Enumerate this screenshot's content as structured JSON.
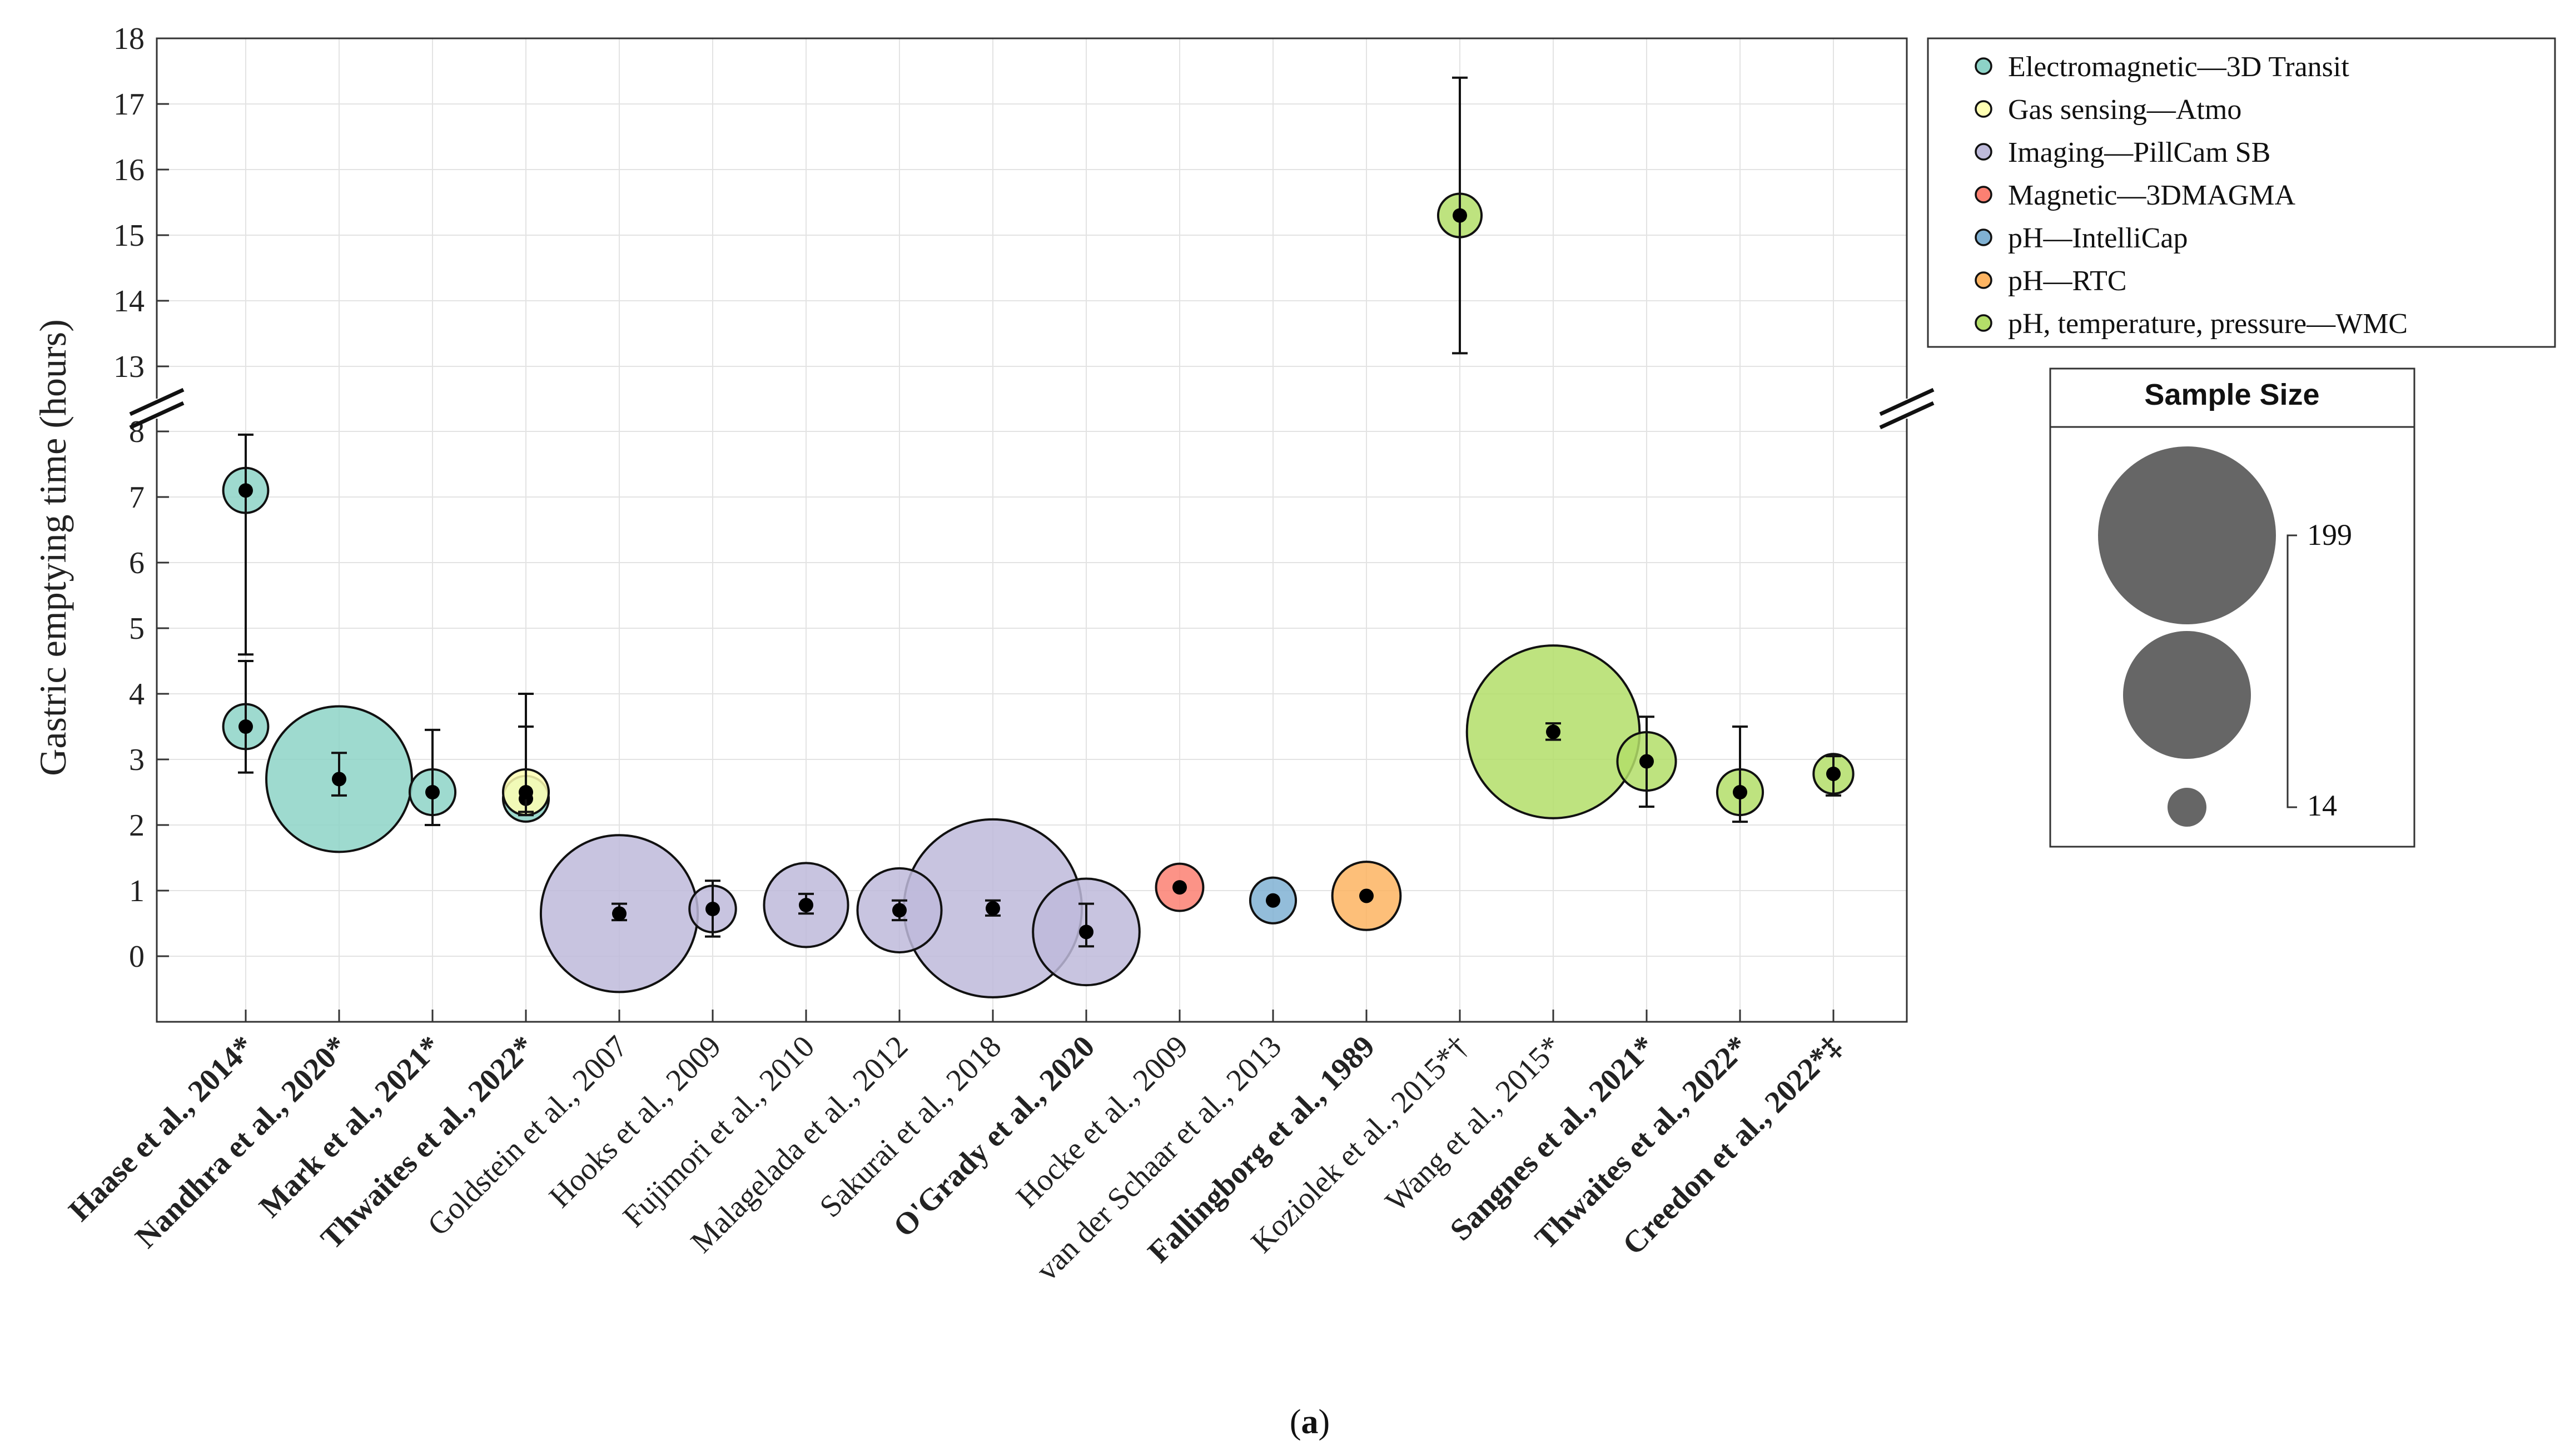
{
  "chart_data": {
    "type": "scatter",
    "title": "",
    "xlabel": "",
    "ylabel": "Gastric emptying time (hours)",
    "ylim_lower": [
      -1,
      8.5
    ],
    "ylim_upper": [
      12.5,
      18
    ],
    "y_axis_break": true,
    "y_ticks_lower": [
      "0",
      "1",
      "2",
      "3",
      "4",
      "5",
      "6",
      "7",
      "8"
    ],
    "y_ticks_upper": [
      "13",
      "14",
      "15",
      "16",
      "17",
      "18"
    ],
    "grid": true,
    "categories": [
      {
        "label": "Haase et al., 2014*",
        "bold": true
      },
      {
        "label": "Nandhra et al., 2020*",
        "bold": true
      },
      {
        "label": "Mark et al., 2021*",
        "bold": true
      },
      {
        "label": "Thwaites et al., 2022*",
        "bold": true
      },
      {
        "label": "Goldstein et al., 2007",
        "bold": false
      },
      {
        "label": "Hooks et al., 2009",
        "bold": false
      },
      {
        "label": "Fujimori et al., 2010",
        "bold": false
      },
      {
        "label": "Malagelada et al., 2012",
        "bold": false
      },
      {
        "label": "Sakurai et al., 2018",
        "bold": false
      },
      {
        "label": "O'Grady et al., 2020",
        "bold": true
      },
      {
        "label": "Hocke et al., 2009",
        "bold": false
      },
      {
        "label": "van der Schaar et al., 2013",
        "bold": false
      },
      {
        "label": "Fallingborg et al., 1989",
        "bold": true
      },
      {
        "label": "Koziolek et al., 2015*†",
        "bold": false
      },
      {
        "label": "Wang et al., 2015*",
        "bold": false
      },
      {
        "label": "Sangnes et al., 2021*",
        "bold": true
      },
      {
        "label": "Thwaites et al., 2022*",
        "bold": true
      },
      {
        "label": "Creedon et al., 2022*‡",
        "bold": true
      }
    ],
    "legend": [
      {
        "name": "Electromagnetic—3D Transit",
        "color": "#8dd3c7"
      },
      {
        "name": "Gas sensing—Atmo",
        "color": "#ffffb3"
      },
      {
        "name": "Imaging—PillCam SB",
        "color": "#bebada"
      },
      {
        "name": "Magnetic—3DMAGMA",
        "color": "#fb8072"
      },
      {
        "name": "pH—IntelliCap",
        "color": "#80b1d3"
      },
      {
        "name": "pH—RTC",
        "color": "#fdb462"
      },
      {
        "name": "pH, temperature, pressure—WMC",
        "color": "#b3de69"
      }
    ],
    "legend_placement": "top-right, outside plot",
    "points": [
      {
        "cat": 0,
        "series": 0,
        "y": 7.1,
        "err_low": 4.6,
        "err_high": 7.95,
        "n": 22
      },
      {
        "cat": 0,
        "series": 0,
        "y": 3.5,
        "err_low": 2.8,
        "err_high": 4.5,
        "n": 22
      },
      {
        "cat": 1,
        "series": 0,
        "y": 2.7,
        "err_low": 2.45,
        "err_high": 3.1,
        "n": 156
      },
      {
        "cat": 2,
        "series": 0,
        "y": 2.5,
        "err_low": 2.0,
        "err_high": 3.45,
        "n": 23
      },
      {
        "cat": 3,
        "series": 0,
        "y": 2.4,
        "err_low": 2.15,
        "err_high": 3.5,
        "n": 23
      },
      {
        "cat": 3,
        "series": 1,
        "y": 2.5,
        "err_low": 2.2,
        "err_high": 4.0,
        "n": 23
      },
      {
        "cat": 4,
        "series": 2,
        "y": 0.65,
        "err_low": 0.55,
        "err_high": 0.8,
        "n": 171
      },
      {
        "cat": 5,
        "series": 2,
        "y": 0.72,
        "err_low": 0.3,
        "err_high": 1.15,
        "n": 24
      },
      {
        "cat": 6,
        "series": 2,
        "y": 0.78,
        "err_low": 0.65,
        "err_high": 0.95,
        "n": 74
      },
      {
        "cat": 7,
        "series": 2,
        "y": 0.7,
        "err_low": 0.55,
        "err_high": 0.85,
        "n": 74
      },
      {
        "cat": 8,
        "series": 2,
        "y": 0.73,
        "err_low": 0.62,
        "err_high": 0.85,
        "n": 199
      },
      {
        "cat": 9,
        "series": 2,
        "y": 0.37,
        "err_low": 0.15,
        "err_high": 0.8,
        "n": 104
      },
      {
        "cat": 10,
        "series": 3,
        "y": 1.05,
        "err_low": 1.05,
        "err_high": 1.05,
        "n": 25
      },
      {
        "cat": 11,
        "series": 4,
        "y": 0.85,
        "err_low": 0.85,
        "err_high": 0.85,
        "n": 23
      },
      {
        "cat": 12,
        "series": 5,
        "y": 0.92,
        "err_low": 0.92,
        "err_high": 0.92,
        "n": 53
      },
      {
        "cat": 13,
        "series": 6,
        "y": 15.3,
        "err_low": 13.2,
        "err_high": 17.4,
        "n": 20
      },
      {
        "cat": 14,
        "series": 6,
        "y": 3.42,
        "err_low": 3.3,
        "err_high": 3.55,
        "n": 192
      },
      {
        "cat": 15,
        "series": 6,
        "y": 2.97,
        "err_low": 2.28,
        "err_high": 3.65,
        "n": 40
      },
      {
        "cat": 16,
        "series": 6,
        "y": 2.5,
        "err_low": 2.05,
        "err_high": 3.5,
        "n": 23
      },
      {
        "cat": 17,
        "series": 6,
        "y": 2.78,
        "err_low": 2.45,
        "err_high": 3.05,
        "n": 15
      }
    ]
  },
  "sample_size": {
    "title": "Sample Size",
    "max_label": "199",
    "min_label": "14",
    "bubbles": [
      199,
      100,
      14
    ]
  },
  "caption": {
    "prefix": "(",
    "letter": "a",
    "suffix": ")"
  }
}
